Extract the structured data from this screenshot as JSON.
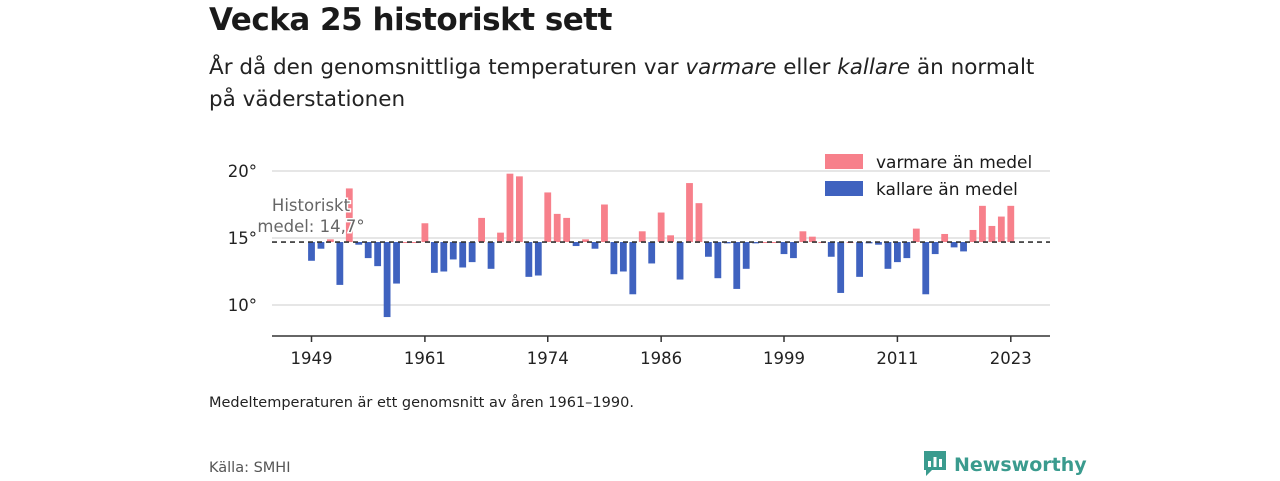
{
  "title": "Vecka 25 historiskt sett",
  "subtitle": {
    "part1": "År då den genomsnittliga temperaturen var ",
    "warm_word": "varmare",
    "part2": " eller ",
    "cold_word": "kallare",
    "part3": " än normalt på väderstationen"
  },
  "note": "Medeltemperaturen är ett genomsnitt av åren 1961–1990.",
  "source": "Källa: SMHI",
  "brand": {
    "name": "Newsworthy",
    "icon": "newsworthy-logo-icon"
  },
  "colors": {
    "warm": "#f7808b",
    "cold": "#3f62bf",
    "brand": "#3a9b8e"
  },
  "chart_data": {
    "type": "bar",
    "baseline": 14.7,
    "baseline_label_line1": "Historiskt",
    "baseline_label_line2": "medel: 14,7°",
    "ylim": [
      7.8,
      20.5
    ],
    "yticks": [
      10,
      15,
      20
    ],
    "ytick_labels": [
      "10°",
      "15°",
      "20°"
    ],
    "xticks": [
      1949,
      1961,
      1974,
      1986,
      1999,
      2011,
      2023
    ],
    "xtick_labels": [
      "1949",
      "1961",
      "1974",
      "1986",
      "1999",
      "2011",
      "2023"
    ],
    "grid": "horizontal",
    "legend": {
      "position": "top-right",
      "warm_label": "varmare än medel",
      "cold_label": "kallare än medel"
    },
    "series": [
      {
        "x": [
          1949,
          1950,
          1951,
          1952,
          1953,
          1954,
          1955,
          1956,
          1957,
          1958,
          1959,
          1960,
          1961,
          1962,
          1963,
          1964,
          1965,
          1966,
          1967,
          1968,
          1969,
          1970,
          1971,
          1972,
          1973,
          1974,
          1975,
          1976,
          1977,
          1978,
          1979,
          1980,
          1981,
          1982,
          1983,
          1984,
          1985,
          1986,
          1987,
          1988,
          1989,
          1990,
          1991,
          1992,
          1993,
          1994,
          1995,
          1996,
          1997,
          1998,
          1999,
          2000,
          2001,
          2002,
          2003,
          2004,
          2005,
          2006,
          2007,
          2008,
          2009,
          2010,
          2011,
          2012,
          2013,
          2014,
          2015,
          2016,
          2017,
          2018,
          2019,
          2020,
          2021,
          2022,
          2023
        ],
        "values": [
          13.3,
          14.2,
          14.9,
          11.5,
          18.7,
          14.5,
          13.5,
          12.9,
          9.1,
          11.6,
          14.7,
          14.7,
          16.1,
          12.4,
          12.5,
          13.4,
          12.8,
          13.2,
          16.5,
          12.7,
          15.4,
          19.8,
          19.6,
          12.1,
          12.2,
          18.4,
          16.8,
          16.5,
          14.4,
          14.9,
          14.2,
          17.5,
          12.3,
          12.5,
          10.8,
          15.5,
          13.1,
          16.9,
          15.2,
          11.9,
          19.1,
          17.6,
          13.6,
          12.0,
          14.6,
          11.2,
          12.7,
          14.6,
          14.7,
          14.7,
          13.8,
          13.5,
          15.5,
          15.1,
          14.7,
          13.6,
          10.9,
          14.7,
          12.1,
          14.6,
          14.5,
          12.7,
          13.2,
          13.5,
          15.7,
          10.8,
          13.8,
          15.3,
          14.3,
          14.0,
          15.6,
          17.4,
          15.9,
          16.6,
          17.4
        ]
      }
    ]
  }
}
